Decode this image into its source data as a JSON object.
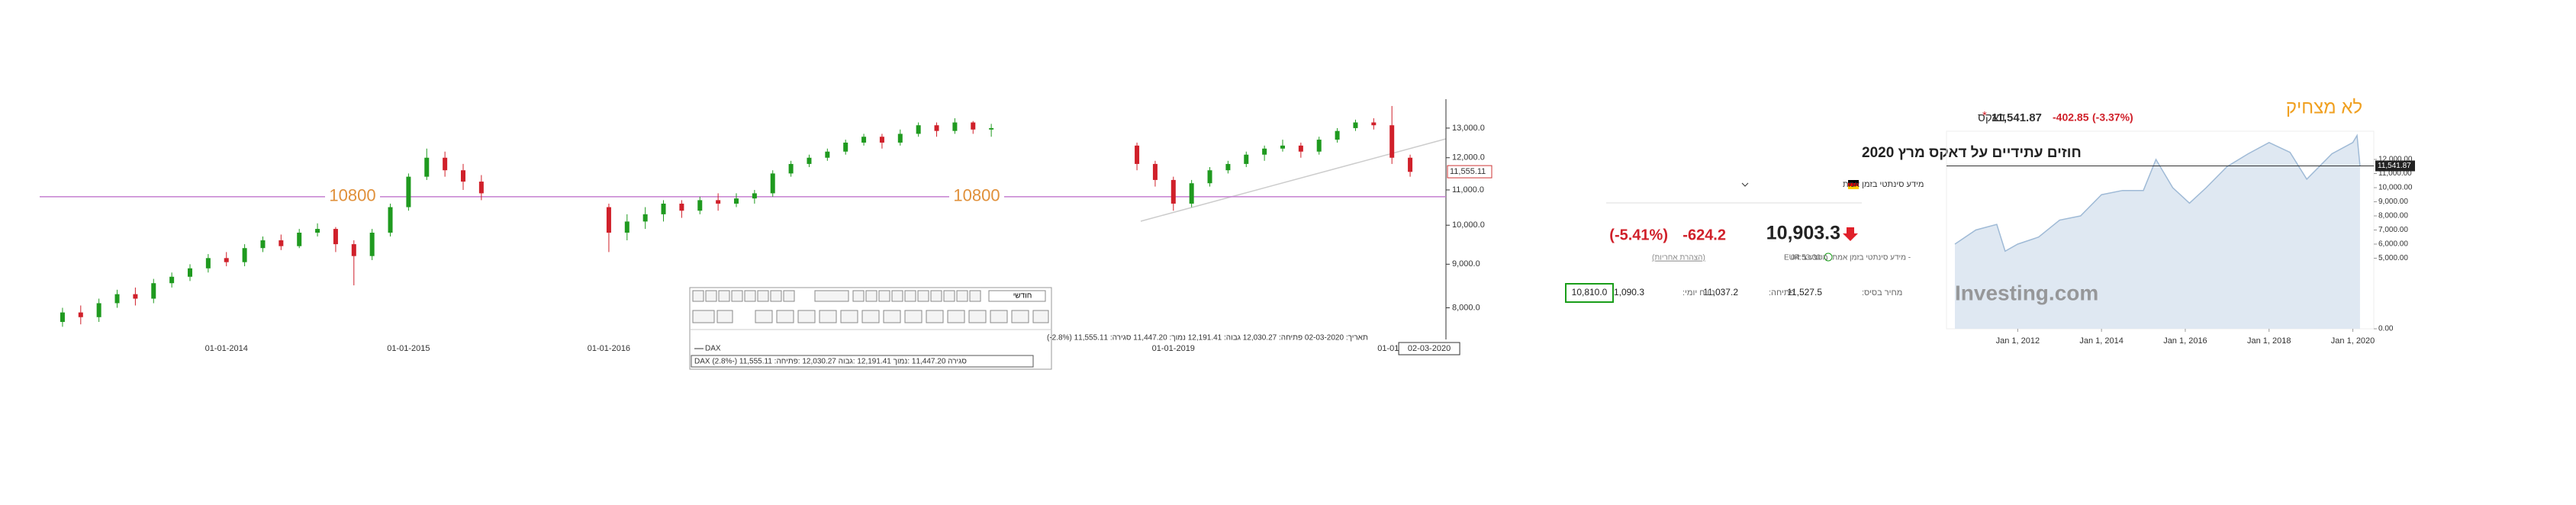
{
  "chart_data": [
    {
      "type": "candlestick",
      "categories": [
        null,
        null,
        null,
        null,
        null,
        null,
        null,
        null,
        null,
        "01-01-2014",
        null,
        null,
        null,
        null,
        null,
        null,
        null,
        null,
        null,
        "01-01-2015",
        null,
        null,
        null,
        null,
        null,
        null,
        null,
        null,
        null,
        null,
        "01-01-2016",
        null,
        null,
        null,
        null,
        null,
        null,
        null,
        null,
        null,
        null,
        null,
        null,
        null,
        null,
        null,
        null,
        null,
        null,
        null,
        null,
        null,
        null,
        null,
        null,
        null,
        null,
        null,
        null,
        null,
        null,
        "01-01-2019",
        null,
        null,
        null,
        null,
        null,
        null,
        null,
        null,
        null,
        null,
        null,
        "01-01-2",
        null
      ],
      "open": [
        7700,
        7900,
        7800,
        8100,
        8300,
        8200,
        8550,
        8700,
        8900,
        9150,
        9050,
        9400,
        9600,
        9450,
        9800,
        9900,
        9500,
        9200,
        9800,
        10500,
        11400,
        12000,
        11600,
        11250,
        null,
        null,
        null,
        null,
        null,
        null,
        10500,
        9800,
        10100,
        10300,
        10600,
        10400,
        10700,
        10600,
        10750,
        10900,
        11500,
        11800,
        12000,
        12200,
        12500,
        12700,
        12500,
        12800,
        13100,
        12900,
        13200,
        12950,
        null,
        null,
        null,
        null,
        null,
        null,
        null,
        12400,
        11800,
        11300,
        10600,
        11200,
        11600,
        11800,
        12100,
        12300,
        12400,
        12200,
        12600,
        13000,
        13200,
        13100,
        12000
      ],
      "close": [
        7900,
        7800,
        8100,
        8300,
        8200,
        8550,
        8700,
        8900,
        9150,
        9050,
        9400,
        9600,
        9450,
        9800,
        9900,
        9500,
        9200,
        9800,
        10500,
        11400,
        12000,
        11600,
        11250,
        10900,
        null,
        null,
        null,
        null,
        null,
        null,
        9800,
        10100,
        10300,
        10600,
        10400,
        10700,
        10600,
        10750,
        10900,
        11500,
        11800,
        12000,
        12200,
        12500,
        12700,
        12500,
        12800,
        13100,
        12900,
        13200,
        12950,
        13000,
        null,
        null,
        null,
        null,
        null,
        null,
        null,
        11800,
        11300,
        10600,
        11200,
        11600,
        11800,
        12100,
        12300,
        12400,
        12200,
        12600,
        12900,
        13200,
        13100,
        12000,
        11550
      ],
      "high": [
        8000,
        8050,
        8200,
        8400,
        8450,
        8650,
        8800,
        9000,
        9250,
        9300,
        9500,
        9700,
        9750,
        9900,
        10050,
        9950,
        9600,
        9900,
        10600,
        11500,
        12300,
        12200,
        11800,
        11450,
        null,
        null,
        null,
        null,
        null,
        null,
        10600,
        10300,
        10500,
        10700,
        10700,
        10800,
        10900,
        10900,
        11000,
        11600,
        11900,
        12100,
        12300,
        12600,
        12800,
        12800,
        12950,
        13200,
        13200,
        13350,
        13250,
        13150,
        null,
        null,
        null,
        null,
        null,
        null,
        null,
        12500,
        11900,
        11400,
        11300,
        11700,
        11900,
        12200,
        12400,
        12600,
        12500,
        12700,
        13000,
        13300,
        13350,
        13800,
        12100
      ],
      "low": [
        7600,
        7650,
        7700,
        8000,
        8050,
        8100,
        8450,
        8600,
        8800,
        8950,
        8950,
        9300,
        9350,
        9400,
        9700,
        9300,
        8500,
        9100,
        9700,
        10400,
        11300,
        11400,
        11000,
        10700,
        null,
        null,
        null,
        null,
        null,
        null,
        9300,
        9600,
        9900,
        10100,
        10200,
        10300,
        10400,
        10500,
        10600,
        10800,
        11400,
        11700,
        11900,
        12100,
        12400,
        12300,
        12400,
        12700,
        12700,
        12800,
        12800,
        12700,
        null,
        null,
        null,
        null,
        null,
        null,
        null,
        11600,
        11100,
        10400,
        10500,
        11100,
        11500,
        11700,
        11900,
        12200,
        12000,
        12100,
        12500,
        12900,
        12950,
        11800,
        11400
      ],
      "up_color": "#1f9a1f",
      "down_color": "#d0202a",
      "log_scale": true,
      "ylim": [
        7420,
        13770
      ],
      "yticks": [
        {
          "value": 8000,
          "label": "8,000.0"
        },
        {
          "value": 9000,
          "label": "9,000.0"
        },
        {
          "value": 10000,
          "label": "10,000.0"
        },
        {
          "value": 11000,
          "label": "11,000.0"
        },
        {
          "value": 12000,
          "label": "12,000.0"
        },
        {
          "value": 13000,
          "label": "13,000.0"
        }
      ],
      "last_price": {
        "value": 11555.11,
        "label": "11,555.11"
      },
      "hline": {
        "value": 10800,
        "color": "#c47fd0",
        "label_color": "#e0903a"
      },
      "crosshair_date": "02-03-2020",
      "toolbar": {
        "period": "חודשי",
        "info": "תאריך: 02-03-2020 פתיחה: 12,030.27 גבוה: 12,191.41 נמוך: 11,447.20 סגירה: 11,555.11 (2.8%-)",
        "series_name": "DAX",
        "legend": "DAX (2.8%-) 11,555.11 :סגירה 11,447.20 :נמוך 12,191.41 :גבוה 12,030.27 :פתיחה"
      }
    },
    {
      "type": "area",
      "title": "לא מצחיק",
      "name": "דאקס",
      "marker": "*",
      "price": "11,541.87",
      "change": "-402.85",
      "change_pct": "(-3.37%)",
      "watermark": "Investing.com",
      "color": "#9fbad6",
      "fill": "#dfe8f2",
      "x": [
        2010.5,
        2011.0,
        2011.5,
        2011.7,
        2012.0,
        2012.5,
        2013.0,
        2013.5,
        2014.0,
        2014.5,
        2015.0,
        2015.3,
        2015.7,
        2016.1,
        2016.5,
        2017.0,
        2017.5,
        2018.0,
        2018.5,
        2018.9,
        2019.5,
        2020.0,
        2020.1,
        2020.17
      ],
      "values": [
        6000,
        7000,
        7400,
        5500,
        6000,
        6500,
        7700,
        8000,
        9500,
        9800,
        9800,
        12000,
        10000,
        8900,
        10000,
        11500,
        12400,
        13200,
        12500,
        10600,
        12400,
        13200,
        13700,
        11541.87
      ],
      "xlim": [
        2010.3,
        2020.5
      ],
      "xticks": [
        {
          "value": 2012,
          "label": "Jan 1, 2012"
        },
        {
          "value": 2014,
          "label": "Jan 1, 2014"
        },
        {
          "value": 2016,
          "label": "Jan 1, 2016"
        },
        {
          "value": 2018,
          "label": "Jan 1, 2018"
        },
        {
          "value": 2020,
          "label": "Jan 1, 2020"
        }
      ],
      "ylim": [
        0,
        14000
      ],
      "yticks": [
        {
          "value": 0,
          "label": "0.00"
        },
        {
          "value": 5000,
          "label": "5,000.00"
        },
        {
          "value": 6000,
          "label": "6,000.00"
        },
        {
          "value": 7000,
          "label": "7,000.00"
        },
        {
          "value": 8000,
          "label": "8,000.00"
        },
        {
          "value": 9000,
          "label": "9,000.00"
        },
        {
          "value": 10000,
          "label": "10,000.00"
        },
        {
          "value": 11000,
          "label": "11,000.00"
        },
        {
          "value": 12000,
          "label": "12,000.00"
        }
      ],
      "last_value": {
        "value": 11541.87,
        "label": "11,541.87"
      }
    }
  ],
  "quote": {
    "title": "חוזים עתידיים על דאקס מרץ 2020",
    "source": "מידע סינתטי בזמן אמת",
    "price": "10,903.3",
    "change": "-624.2",
    "change_pct": "(-5.41%)",
    "time": "04:53:30",
    "note": "- מידע סינתטי בזמן אמת. מטבע ב EUR",
    "disclaimer": "(הצהרת אחריות)",
    "base_label": "מחיר בסיס:",
    "base_value": "11,527.5",
    "open_label": "פתיחה:",
    "open_value": "11,037.2",
    "range_label": "טווח יומי:",
    "range_high": "11,090.3",
    "range_low": "10,810.0"
  }
}
